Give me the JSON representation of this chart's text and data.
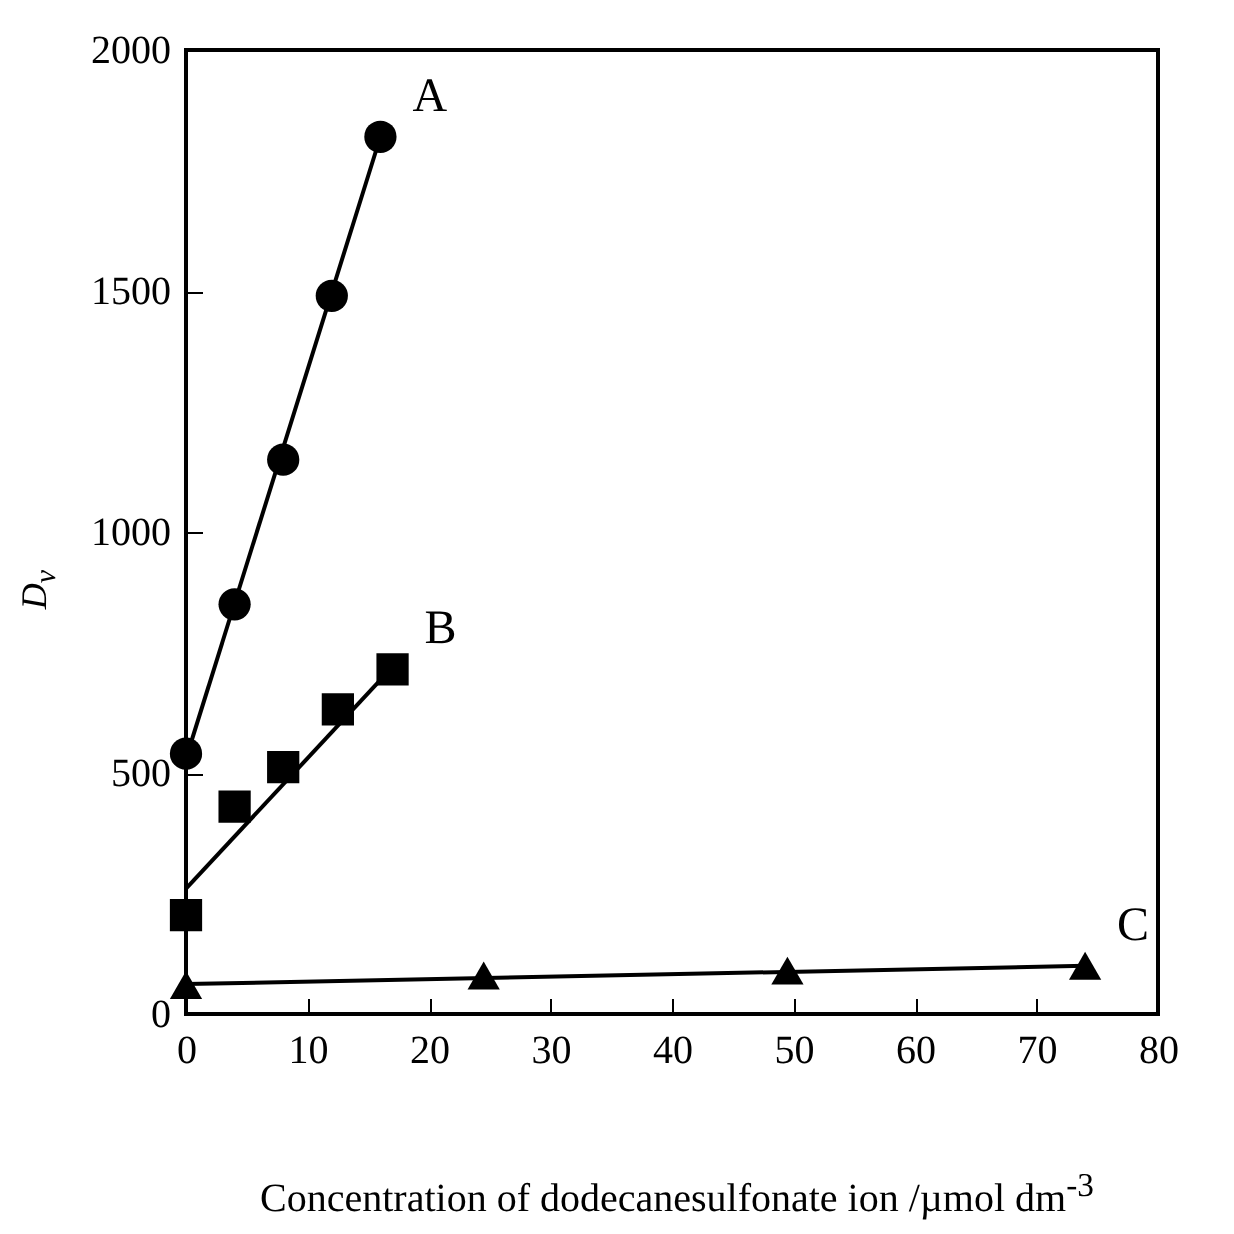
{
  "chart_data": {
    "type": "scatter",
    "xlabel": "Concentration of dodecanesulfonate ion /µmol dm$^{-3}$",
    "ylabel": "D$_{v}$",
    "xlim": [
      0,
      80
    ],
    "ylim": [
      0,
      2000
    ],
    "xticks": [
      0,
      10,
      20,
      30,
      40,
      50,
      60,
      70,
      80
    ],
    "yticks": [
      0,
      500,
      1000,
      1500,
      2000
    ],
    "series": [
      {
        "name": "A",
        "color": "#000000",
        "marker": "circle",
        "x": [
          0,
          4,
          8,
          12,
          16
        ],
        "values": [
          540,
          850,
          1150,
          1490,
          1820
        ]
      },
      {
        "name": "B",
        "color": "#000000",
        "marker": "square",
        "x": [
          0,
          4,
          8,
          12.5,
          17
        ],
        "values": [
          205,
          430,
          512,
          632,
          715
        ]
      },
      {
        "name": "C",
        "color": "#000000",
        "marker": "triangle",
        "x": [
          0,
          24.5,
          49.5,
          74
        ],
        "values": [
          60,
          80,
          90,
          100
        ]
      },
      {
        "type": "line",
        "color": "#000000",
        "marker": "none",
        "x": [
          0,
          16
        ],
        "values": [
          530,
          1820
        ]
      },
      {
        "type": "line",
        "color": "#000000",
        "marker": "none",
        "x": [
          0,
          17
        ],
        "values": [
          260,
          720
        ]
      },
      {
        "type": "line",
        "color": "#000000",
        "marker": "none",
        "x": [
          0,
          74
        ],
        "values": [
          62,
          100
        ]
      }
    ]
  }
}
